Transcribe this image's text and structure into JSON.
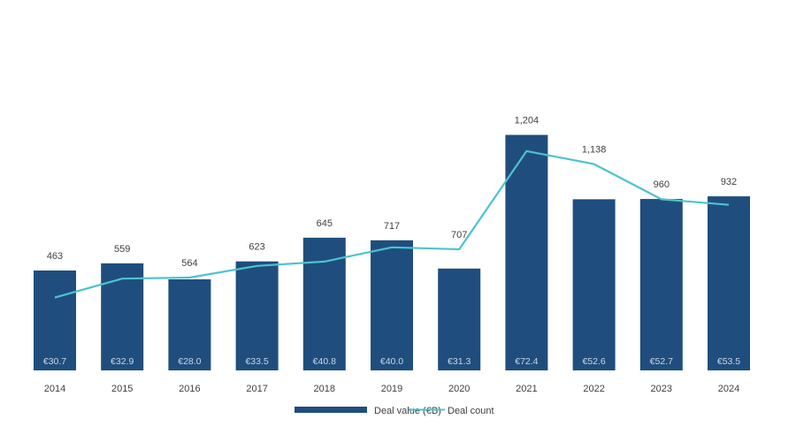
{
  "chart_data": {
    "type": "bar",
    "title": "",
    "xlabel": "",
    "ylabel": "",
    "categories": [
      "2014",
      "2015",
      "2016",
      "2017",
      "2018",
      "2019",
      "2020",
      "2021",
      "2022",
      "2023",
      "2024"
    ],
    "series": [
      {
        "name": "Deal value (€B)",
        "type": "bar",
        "values": [
          30.7,
          32.9,
          28.0,
          33.5,
          40.8,
          40.0,
          31.3,
          72.4,
          52.6,
          52.7,
          53.5
        ],
        "labels": [
          "€30.7",
          "€32.9",
          "€28.0",
          "€33.5",
          "€40.8",
          "€40.0",
          "€31.3",
          "€72.4",
          "€52.6",
          "€52.7",
          "€53.5"
        ]
      },
      {
        "name": "Deal count",
        "type": "line",
        "values": [
          463,
          559,
          564,
          623,
          645,
          717,
          707,
          1204,
          1138,
          960,
          932
        ],
        "labels": [
          "463",
          "559",
          "564",
          "623",
          "645",
          "717",
          "707",
          "1,204",
          "1,138",
          "960",
          "932"
        ]
      }
    ],
    "legend": {
      "position": "bottom-center",
      "entries": [
        "Deal value (€B)",
        "Deal count"
      ]
    },
    "colors": {
      "bar": "#1f4e7e",
      "line": "#4cc3cf",
      "bar_label": "#c9d6e6",
      "text": "#404040"
    },
    "grid": false
  }
}
